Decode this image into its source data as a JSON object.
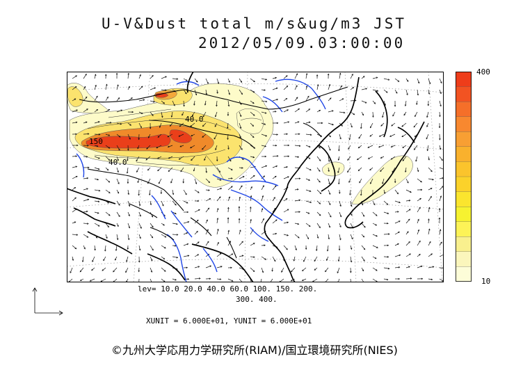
{
  "title": {
    "line1": "U-V&Dust total m/s&ug/m3 JST",
    "line2": "2012/05/09.03:00:00"
  },
  "colorbar": {
    "max_label": "400",
    "min_label": "10",
    "colors": [
      "#fdfdd8",
      "#fbf6bc",
      "#f9f08e",
      "#fdf357",
      "#f6f230",
      "#fbe52e",
      "#fbd22a",
      "#fbc42c",
      "#f9b12d",
      "#f89f33",
      "#f8882f",
      "#f56f29",
      "#f25322",
      "#ee3d1a"
    ]
  },
  "contour_labels": {
    "label_a": "40.0",
    "label_b": "150",
    "label_c": "40.0"
  },
  "levels": {
    "line1": "lev= 10.0 20.0 40.0 60.0 100. 150. 200.",
    "line2": "300. 400."
  },
  "units": {
    "text": "XUNIT = 6.000E+01, YUNIT = 6.000E+01"
  },
  "credit": {
    "text": "©九州大学応用力学研究所(RIAM)/国立環境研究所(NIES)"
  },
  "colors": {
    "coast": "#000000",
    "river": "#1e45e6",
    "dust_low": "#fdfbc9",
    "dust_mid": "#fbe36e",
    "dust_high": "#f08a2a",
    "dust_peak": "#ea3f1a"
  }
}
